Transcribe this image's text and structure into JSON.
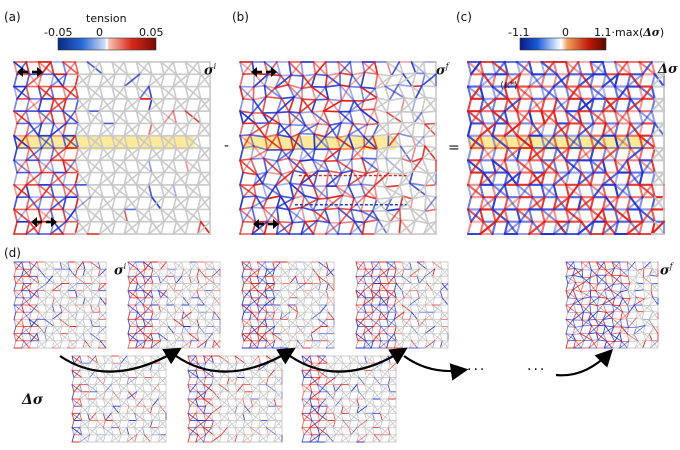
{
  "panel_labels": {
    "a": "(a)",
    "b": "(b)",
    "c": "(c)",
    "d": "(d)"
  },
  "colorbar_left": {
    "title": "tension",
    "min": "-0.05",
    "mid": "0",
    "max": "0.05"
  },
  "colorbar_right": {
    "min": "-1.1",
    "mid": "0",
    "max_factor": "1.1",
    "max_suffix": "·max(",
    "max_symbol": "Δσ",
    "max_close": ")"
  },
  "symbols": {
    "sigma": "σ",
    "sup_initial": "i",
    "sup_final": "f",
    "delta_sigma": "Δσ"
  },
  "operators": {
    "minus": "-",
    "equals": "="
  },
  "annotation_c": "⟨ℓᵢ*⟩",
  "ellipsis": "···",
  "colors": {
    "tension_positive": "#e0201a",
    "tension_negative": "#2030d0",
    "neutral": "#c8c8c8",
    "highlight": "#ffe27a"
  }
}
